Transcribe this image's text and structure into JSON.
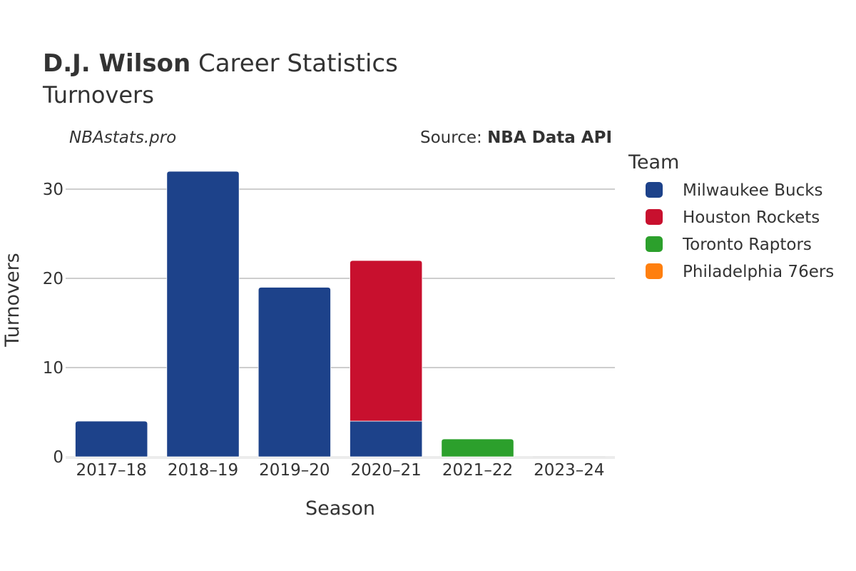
{
  "title": {
    "player": "D.J. Wilson",
    "rest": " Career Statistics",
    "subtitle": "Turnovers"
  },
  "watermark": "NBAstats.pro",
  "source": {
    "prefix": "Source: ",
    "name": "NBA Data API"
  },
  "legend": {
    "title": "Team"
  },
  "chart_data": {
    "type": "bar",
    "stacked": true,
    "categories": [
      "2017–18",
      "2018–19",
      "2019–20",
      "2020–21",
      "2021–22",
      "2023–24"
    ],
    "series": [
      {
        "name": "Milwaukee Bucks",
        "color": "#1d428a",
        "values": [
          4,
          32,
          19,
          4,
          0,
          0
        ]
      },
      {
        "name": "Houston Rockets",
        "color": "#c8102e",
        "values": [
          0,
          0,
          0,
          18,
          0,
          0
        ]
      },
      {
        "name": "Toronto Raptors",
        "color": "#2ca02c",
        "values": [
          0,
          0,
          0,
          0,
          2,
          0
        ]
      },
      {
        "name": "Philadelphia 76ers",
        "color": "#ff7f0e",
        "values": [
          0,
          0,
          0,
          0,
          0,
          0
        ]
      }
    ],
    "xlabel": "Season",
    "ylabel": "Turnovers",
    "ylim": [
      0,
      34
    ],
    "yticks": [
      0,
      10,
      20,
      30
    ],
    "grid": true,
    "legend_position": "right"
  }
}
